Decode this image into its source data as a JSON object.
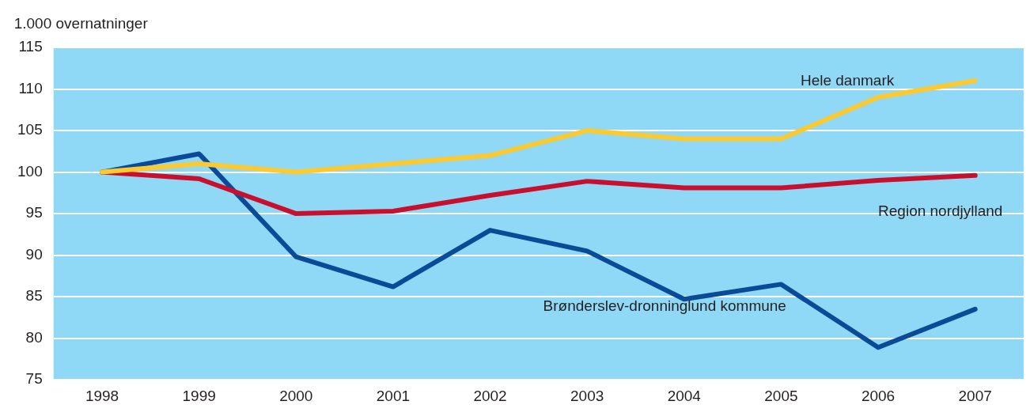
{
  "chart_data": {
    "type": "line",
    "ylabel": "1.000 overnatninger",
    "categories": [
      "1998",
      "1999",
      "2000",
      "2001",
      "2002",
      "2003",
      "2004",
      "2005",
      "2006",
      "2007"
    ],
    "series": [
      {
        "name": "Hele danmark",
        "color": "#fcc92e",
        "values": [
          100,
          101,
          100,
          101,
          102,
          105,
          104,
          104,
          109,
          111
        ]
      },
      {
        "name": "Region nordjylland",
        "color": "#c8102e",
        "values": [
          100,
          99.2,
          95,
          95.3,
          97.2,
          98.9,
          98.1,
          98.1,
          99,
          99.6
        ]
      },
      {
        "name": "Brønderslev-dronninglund kommune",
        "color": "#0a4a97",
        "values": [
          100,
          102.2,
          89.8,
          86.2,
          93,
          90.5,
          84.7,
          86.5,
          78.9,
          83.5
        ]
      }
    ],
    "ylim": [
      75,
      115
    ],
    "yticks": [
      75,
      80,
      85,
      90,
      95,
      100,
      105,
      110,
      115
    ],
    "grid": "y",
    "legend": false,
    "marker": "none",
    "line_style": "solid"
  }
}
